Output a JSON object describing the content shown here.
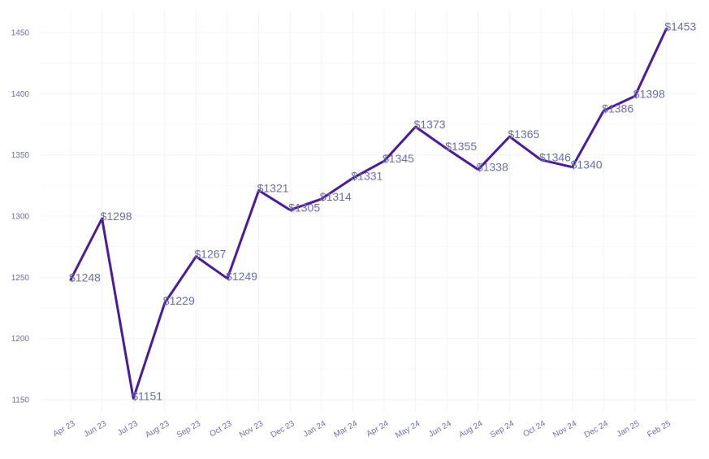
{
  "chart_data": {
    "type": "line",
    "title": "",
    "xlabel": "",
    "ylabel": "",
    "grid": true,
    "ylim": [
      1140,
      1460
    ],
    "yticks": [
      1150,
      1200,
      1250,
      1300,
      1350,
      1400,
      1450
    ],
    "ytick_labels": [
      "1150",
      "1200",
      "1250",
      "1300",
      "1350",
      "1400",
      "1450"
    ],
    "categories": [
      "Apr 23",
      "Jun 23",
      "Jul 23",
      "Aug 23",
      "Sep 23",
      "Oct 23",
      "Nov 23",
      "Dec 23",
      "Jan 24",
      "Mar 24",
      "Apr 24",
      "May 24",
      "Jun 24",
      "Aug 24",
      "Sep 24",
      "Oct 24",
      "Nov 24",
      "Dec 24",
      "Jan 25",
      "Feb 25"
    ],
    "values": [
      1248,
      1298,
      1151,
      1229,
      1267,
      1249,
      1321,
      1305,
      1314,
      1331,
      1345,
      1373,
      1355,
      1338,
      1365,
      1346,
      1340,
      1386,
      1398,
      1453
    ],
    "data_labels": [
      "$1248",
      "$1298",
      "$1151",
      "$1229",
      "$1267",
      "$1249",
      "$1321",
      "$1305",
      "$1314",
      "$1331",
      "$1345",
      "$1373",
      "$1355",
      "$1338",
      "$1365",
      "$1346",
      "$1340",
      "$1386",
      "$1398",
      "$1453"
    ],
    "line_color": "#4a1aa0",
    "label_color": "#6b6fa8",
    "grid_color": "#f3f3f8"
  }
}
